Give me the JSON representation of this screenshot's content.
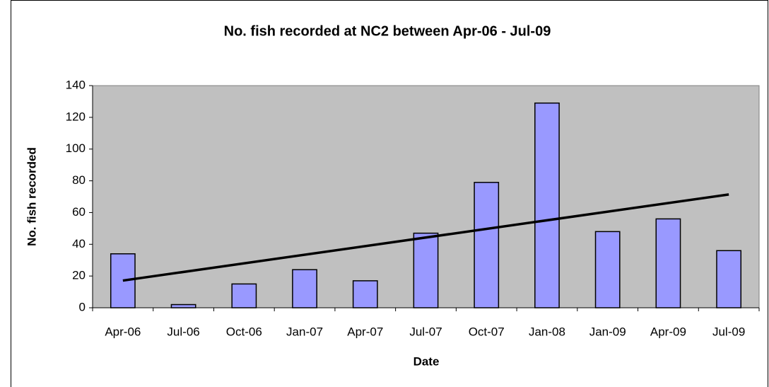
{
  "chart_data": {
    "type": "bar",
    "title": "No. fish recorded at NC2 between Apr-06 - Jul-09",
    "x_label": "Date",
    "y_label": "No. fish recorded",
    "categories": [
      "Apr-06",
      "Jul-06",
      "Oct-06",
      "Jan-07",
      "Apr-07",
      "Jul-07",
      "Oct-07",
      "Jan-08",
      "Jan-09",
      "Apr-09",
      "Jul-09"
    ],
    "values": [
      34,
      2,
      15,
      24,
      17,
      47,
      79,
      129,
      48,
      56,
      36
    ],
    "color": "#9999ff",
    "trendline": "linear",
    "ylim": [
      0,
      140
    ],
    "yticks": [
      0,
      20,
      40,
      60,
      80,
      100,
      120,
      140
    ],
    "grid": false
  }
}
